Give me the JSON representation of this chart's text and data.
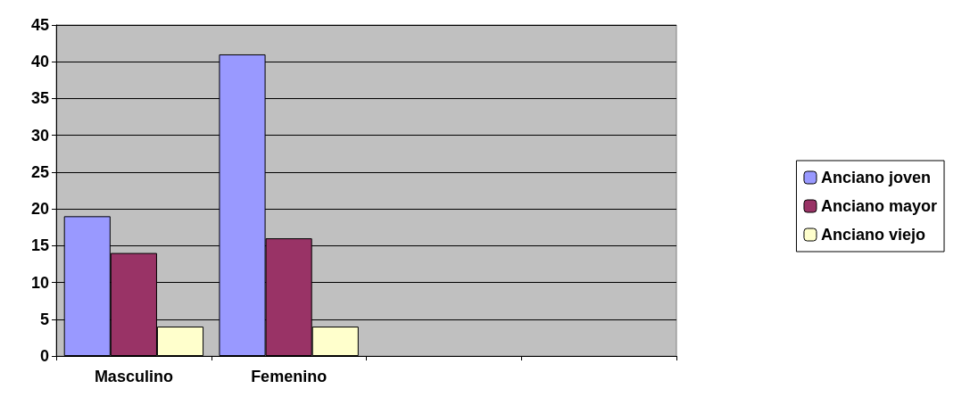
{
  "chart_data": {
    "type": "bar",
    "categories": [
      "Masculino",
      "Femenino",
      null,
      null
    ],
    "series": [
      {
        "name": "Anciano joven",
        "color": "#9999ff",
        "values": [
          19,
          41,
          null,
          null
        ]
      },
      {
        "name": "Anciano mayor",
        "color": "#993366",
        "values": [
          14,
          16,
          null,
          null
        ]
      },
      {
        "name": "Anciano viejo",
        "color": "#ffffcc",
        "values": [
          4,
          4,
          null,
          null
        ]
      }
    ],
    "ylim": [
      0,
      45
    ],
    "yticks": [
      0,
      5,
      10,
      15,
      20,
      25,
      30,
      35,
      40,
      45
    ],
    "grid": "y",
    "legend": "right"
  }
}
